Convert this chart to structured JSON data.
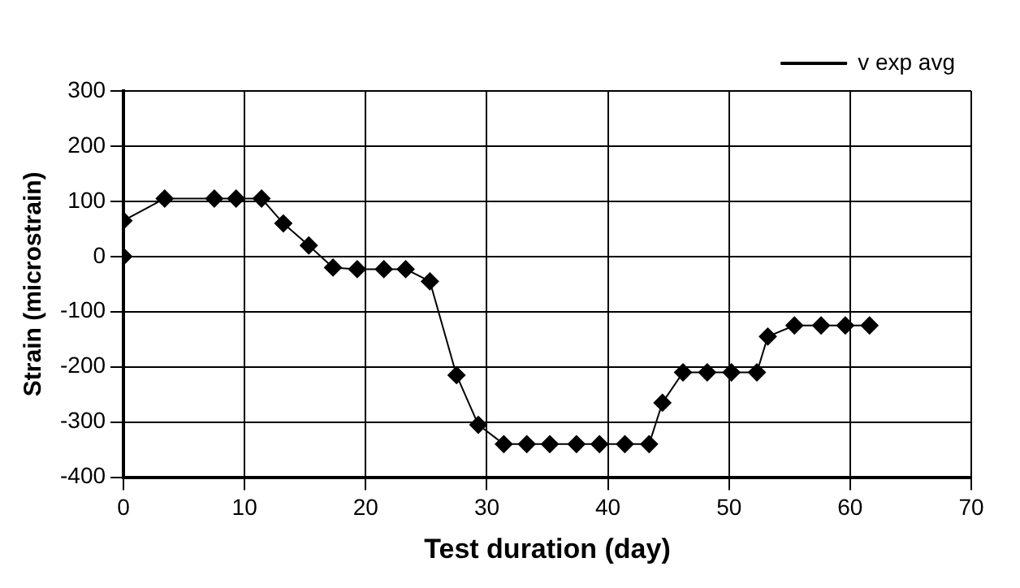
{
  "chart_data": {
    "type": "line",
    "xlabel": "Test duration (day)",
    "ylabel": "Strain (microstrain)",
    "xlim": [
      0,
      70
    ],
    "xticks": [
      0,
      10,
      20,
      30,
      40,
      50,
      60,
      70
    ],
    "ylim": [
      -400,
      300
    ],
    "yticks": [
      -400,
      -300,
      -200,
      -100,
      0,
      100,
      200,
      300
    ],
    "grid": true,
    "legend": "top right",
    "marker": "diamond",
    "line_style": "solid",
    "series": [
      {
        "name": "v exp avg",
        "color": "#000000",
        "x": [
          0,
          0,
          3.4,
          7.5,
          9.3,
          11.4,
          13.2,
          15.3,
          17.3,
          19.3,
          21.5,
          23.3,
          25.3,
          27.5,
          29.3,
          31.4,
          33.3,
          35.2,
          37.4,
          39.3,
          41.4,
          43.4,
          44.5,
          46.2,
          48.2,
          50.2,
          52.3,
          53.2,
          55.4,
          57.6,
          59.6,
          61.6
        ],
        "values": [
          0,
          65,
          105,
          105,
          105,
          105,
          60,
          20,
          -20,
          -23,
          -23,
          -23,
          -45,
          -215,
          -305,
          -340,
          -340,
          -340,
          -340,
          -340,
          -340,
          -340,
          -265,
          -210,
          -210,
          -210,
          -210,
          -145,
          -125,
          -125,
          -125,
          -125
        ]
      }
    ]
  }
}
